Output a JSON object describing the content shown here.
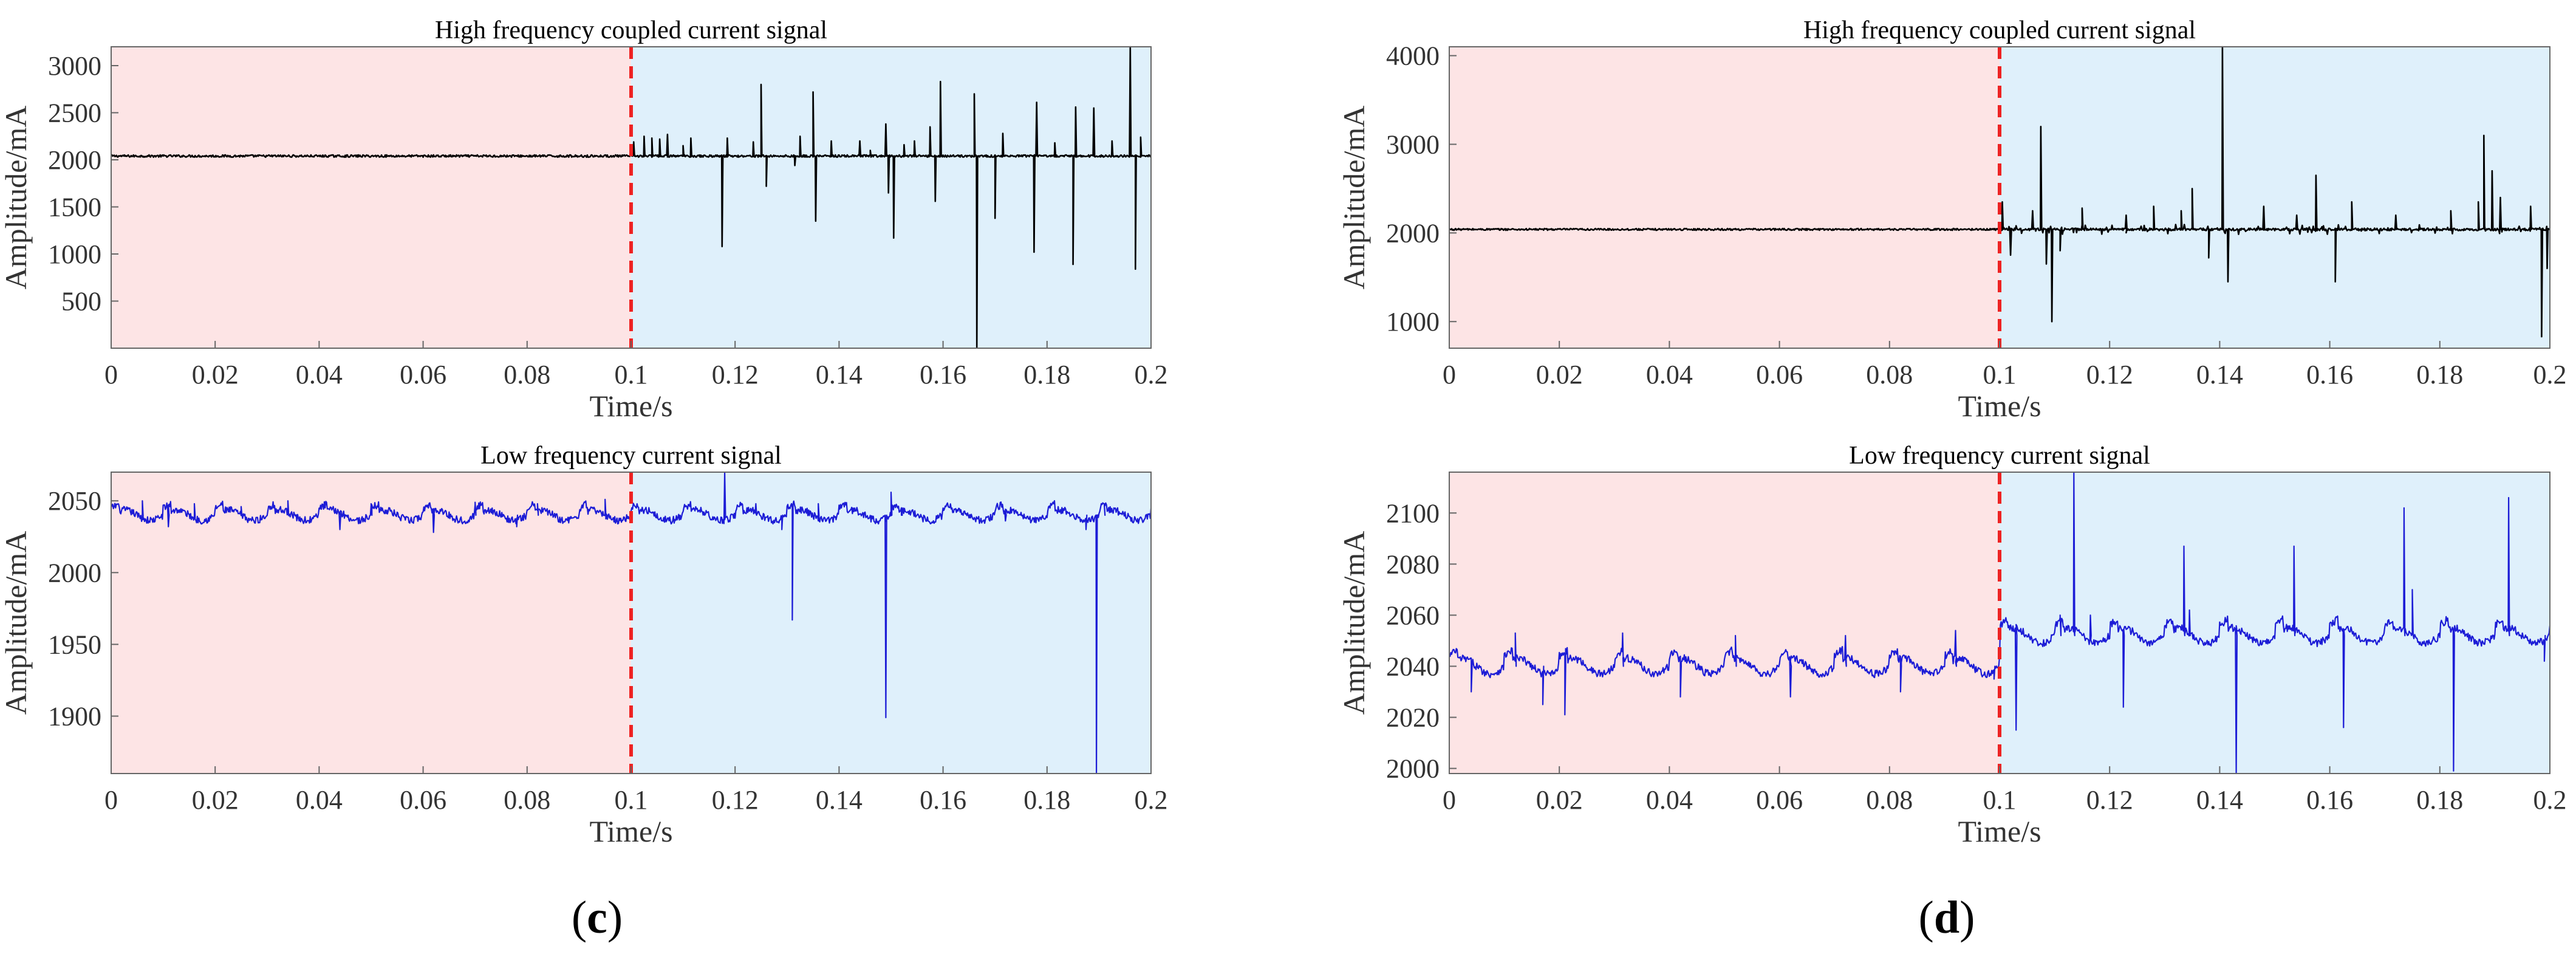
{
  "panels": [
    {
      "label": "c"
    },
    {
      "label": "d"
    }
  ],
  "colors": {
    "normal_region": "#fde4e5",
    "fault_region": "#dff0fb",
    "divider": "#ee2222",
    "high_freq_line": "#000000",
    "low_freq_line": "#1c1cd6",
    "axis": "#666666"
  },
  "chart_data": [
    {
      "type": "line",
      "panel": "c",
      "title": "High frequency coupled current signal",
      "xlabel": "Time/s",
      "ylabel": "Amplitude/mA",
      "xlim": [
        0,
        0.2
      ],
      "ylim": [
        0,
        3200
      ],
      "xticks": [
        "0",
        "0.02",
        "0.04",
        "0.06",
        "0.08",
        "0.1",
        "0.12",
        "0.14",
        "0.16",
        "0.18",
        "0.2"
      ],
      "yticks": [
        500,
        1000,
        1500,
        2000,
        2500,
        3000
      ],
      "grid": false,
      "divider_x": 0.1,
      "regions": [
        {
          "x": [
            0,
            0.1
          ],
          "name": "normal"
        },
        {
          "x": [
            0.1,
            0.2
          ],
          "name": "fault"
        }
      ],
      "series": [
        {
          "color": "#000000",
          "baseline": 2040,
          "noise": 12,
          "spikes": [
            {
              "x": 0.1005,
              "y": 2190
            },
            {
              "x": 0.1025,
              "y": 2250
            },
            {
              "x": 0.104,
              "y": 2230
            },
            {
              "x": 0.1055,
              "y": 2220
            },
            {
              "x": 0.107,
              "y": 2270
            },
            {
              "x": 0.11,
              "y": 2150
            },
            {
              "x": 0.1115,
              "y": 2230
            },
            {
              "x": 0.1175,
              "y": 1080
            },
            {
              "x": 0.1185,
              "y": 2230
            },
            {
              "x": 0.1235,
              "y": 2190
            },
            {
              "x": 0.125,
              "y": 2800
            },
            {
              "x": 0.126,
              "y": 1720
            },
            {
              "x": 0.1315,
              "y": 1940
            },
            {
              "x": 0.1325,
              "y": 2250
            },
            {
              "x": 0.135,
              "y": 2720
            },
            {
              "x": 0.1355,
              "y": 1350
            },
            {
              "x": 0.1385,
              "y": 2200
            },
            {
              "x": 0.144,
              "y": 2200
            },
            {
              "x": 0.146,
              "y": 2100
            },
            {
              "x": 0.149,
              "y": 2380
            },
            {
              "x": 0.1495,
              "y": 1650
            },
            {
              "x": 0.1505,
              "y": 1170
            },
            {
              "x": 0.1525,
              "y": 2160
            },
            {
              "x": 0.1545,
              "y": 2200
            },
            {
              "x": 0.1575,
              "y": 2350
            },
            {
              "x": 0.1585,
              "y": 1560
            },
            {
              "x": 0.1595,
              "y": 2830
            },
            {
              "x": 0.166,
              "y": 2700
            },
            {
              "x": 0.1665,
              "y": 10
            },
            {
              "x": 0.17,
              "y": 1380
            },
            {
              "x": 0.1715,
              "y": 2280
            },
            {
              "x": 0.1775,
              "y": 1020
            },
            {
              "x": 0.178,
              "y": 2610
            },
            {
              "x": 0.1815,
              "y": 2180
            },
            {
              "x": 0.185,
              "y": 890
            },
            {
              "x": 0.1855,
              "y": 2560
            },
            {
              "x": 0.189,
              "y": 2550
            },
            {
              "x": 0.1925,
              "y": 2200
            },
            {
              "x": 0.196,
              "y": 3200
            },
            {
              "x": 0.197,
              "y": 840
            },
            {
              "x": 0.198,
              "y": 2240
            }
          ]
        }
      ]
    },
    {
      "type": "line",
      "panel": "c",
      "title": "Low frequency current signal",
      "xlabel": "Time/s",
      "ylabel": "Amplitude/mA",
      "xlim": [
        0,
        0.2
      ],
      "ylim": [
        1860,
        2070
      ],
      "xticks": [
        "0",
        "0.02",
        "0.04",
        "0.06",
        "0.08",
        "0.1",
        "0.12",
        "0.14",
        "0.16",
        "0.18",
        "0.2"
      ],
      "yticks": [
        1900,
        1950,
        2000,
        2050
      ],
      "grid": false,
      "divider_x": 0.1,
      "regions": [
        {
          "x": [
            0,
            0.1
          ],
          "name": "normal"
        },
        {
          "x": [
            0.1,
            0.2
          ],
          "name": "fault"
        }
      ],
      "series": [
        {
          "color": "#1c1cd6",
          "baseline": 2040,
          "noise": 2.5,
          "wave": {
            "period": 0.01,
            "amplitude": 6
          },
          "spikes": [
            {
              "x": 0.006,
              "y": 2050
            },
            {
              "x": 0.011,
              "y": 2032
            },
            {
              "x": 0.016,
              "y": 2048
            },
            {
              "x": 0.025,
              "y": 2046
            },
            {
              "x": 0.034,
              "y": 2050
            },
            {
              "x": 0.044,
              "y": 2030
            },
            {
              "x": 0.05,
              "y": 2048
            },
            {
              "x": 0.062,
              "y": 2028
            },
            {
              "x": 0.07,
              "y": 2049
            },
            {
              "x": 0.078,
              "y": 2032
            },
            {
              "x": 0.082,
              "y": 2048
            },
            {
              "x": 0.095,
              "y": 2051
            },
            {
              "x": 0.118,
              "y": 2070
            },
            {
              "x": 0.124,
              "y": 2048
            },
            {
              "x": 0.129,
              "y": 2030
            },
            {
              "x": 0.131,
              "y": 1967
            },
            {
              "x": 0.136,
              "y": 2048
            },
            {
              "x": 0.149,
              "y": 1899
            },
            {
              "x": 0.15,
              "y": 2056
            },
            {
              "x": 0.152,
              "y": 2040
            },
            {
              "x": 0.172,
              "y": 2036
            },
            {
              "x": 0.1875,
              "y": 2030
            },
            {
              "x": 0.1895,
              "y": 1860
            },
            {
              "x": 0.191,
              "y": 2048
            }
          ]
        }
      ]
    },
    {
      "type": "line",
      "panel": "d",
      "title": "High frequency coupled current signal",
      "xlabel": "Time/s",
      "ylabel": "Amplitude/mA",
      "xlim": [
        0,
        0.2
      ],
      "ylim": [
        700,
        4100
      ],
      "xticks": [
        "0",
        "0.02",
        "0.04",
        "0.06",
        "0.08",
        "0.1",
        "0.12",
        "0.14",
        "0.16",
        "0.18",
        "0.2"
      ],
      "yticks": [
        1000,
        2000,
        3000,
        4000
      ],
      "grid": false,
      "divider_x": 0.1,
      "regions": [
        {
          "x": [
            0,
            0.1
          ],
          "name": "normal"
        },
        {
          "x": [
            0.1,
            0.2
          ],
          "name": "fault"
        }
      ],
      "series": [
        {
          "color": "#000000",
          "baseline": 2040,
          "noise": 10,
          "noise_fault": 55,
          "spikes": [
            {
              "x": 0.1005,
              "y": 2350
            },
            {
              "x": 0.102,
              "y": 1750
            },
            {
              "x": 0.106,
              "y": 2250
            },
            {
              "x": 0.1075,
              "y": 3200
            },
            {
              "x": 0.1085,
              "y": 1650
            },
            {
              "x": 0.1095,
              "y": 1000
            },
            {
              "x": 0.111,
              "y": 1800
            },
            {
              "x": 0.115,
              "y": 2280
            },
            {
              "x": 0.123,
              "y": 2200
            },
            {
              "x": 0.128,
              "y": 2300
            },
            {
              "x": 0.133,
              "y": 2250
            },
            {
              "x": 0.135,
              "y": 2500
            },
            {
              "x": 0.138,
              "y": 1720
            },
            {
              "x": 0.1405,
              "y": 4100
            },
            {
              "x": 0.1415,
              "y": 1450
            },
            {
              "x": 0.148,
              "y": 2300
            },
            {
              "x": 0.154,
              "y": 2200
            },
            {
              "x": 0.1575,
              "y": 2650
            },
            {
              "x": 0.161,
              "y": 1450
            },
            {
              "x": 0.164,
              "y": 2350
            },
            {
              "x": 0.172,
              "y": 2200
            },
            {
              "x": 0.182,
              "y": 2250
            },
            {
              "x": 0.187,
              "y": 2350
            },
            {
              "x": 0.188,
              "y": 3100
            },
            {
              "x": 0.1895,
              "y": 2700
            },
            {
              "x": 0.191,
              "y": 2400
            },
            {
              "x": 0.1965,
              "y": 2300
            },
            {
              "x": 0.1985,
              "y": 830
            },
            {
              "x": 0.1995,
              "y": 1600
            }
          ]
        }
      ]
    },
    {
      "type": "line",
      "panel": "d",
      "title": "Low frequency current signal",
      "xlabel": "Time/s",
      "ylabel": "Amplitude/mA",
      "xlim": [
        0,
        0.2
      ],
      "ylim": [
        1998,
        2116
      ],
      "xticks": [
        "0",
        "0.02",
        "0.04",
        "0.06",
        "0.08",
        "0.1",
        "0.12",
        "0.14",
        "0.16",
        "0.18",
        "0.2"
      ],
      "yticks": [
        2000,
        2020,
        2040,
        2060,
        2080,
        2100
      ],
      "grid": false,
      "divider_x": 0.1,
      "regions": [
        {
          "x": [
            0,
            0.1
          ],
          "name": "normal"
        },
        {
          "x": [
            0.1,
            0.2
          ],
          "name": "fault"
        }
      ],
      "series": [
        {
          "color": "#1c1cd6",
          "level_segments": [
            {
              "x": [
                0,
                0.1
              ],
              "y": 2040
            },
            {
              "x": [
                0.1,
                0.2
              ],
              "y": 2052
            }
          ],
          "noise": 1.5,
          "wave": {
            "period": 0.01,
            "amplitude": 5
          },
          "spikes": [
            {
              "x": 0.004,
              "y": 2030
            },
            {
              "x": 0.012,
              "y": 2053
            },
            {
              "x": 0.017,
              "y": 2025
            },
            {
              "x": 0.021,
              "y": 2021
            },
            {
              "x": 0.0315,
              "y": 2053
            },
            {
              "x": 0.042,
              "y": 2028
            },
            {
              "x": 0.052,
              "y": 2052
            },
            {
              "x": 0.062,
              "y": 2028
            },
            {
              "x": 0.072,
              "y": 2052
            },
            {
              "x": 0.082,
              "y": 2030
            },
            {
              "x": 0.092,
              "y": 2054
            },
            {
              "x": 0.099,
              "y": 2035
            },
            {
              "x": 0.103,
              "y": 2015
            },
            {
              "x": 0.111,
              "y": 2060
            },
            {
              "x": 0.1135,
              "y": 2116
            },
            {
              "x": 0.1165,
              "y": 2060
            },
            {
              "x": 0.1225,
              "y": 2024
            },
            {
              "x": 0.1335,
              "y": 2087
            },
            {
              "x": 0.1345,
              "y": 2062
            },
            {
              "x": 0.143,
              "y": 1998
            },
            {
              "x": 0.1535,
              "y": 2087
            },
            {
              "x": 0.1625,
              "y": 2016
            },
            {
              "x": 0.1735,
              "y": 2102
            },
            {
              "x": 0.175,
              "y": 2070
            },
            {
              "x": 0.1825,
              "y": 1999
            },
            {
              "x": 0.1925,
              "y": 2106
            },
            {
              "x": 0.199,
              "y": 2042
            }
          ]
        }
      ]
    }
  ]
}
